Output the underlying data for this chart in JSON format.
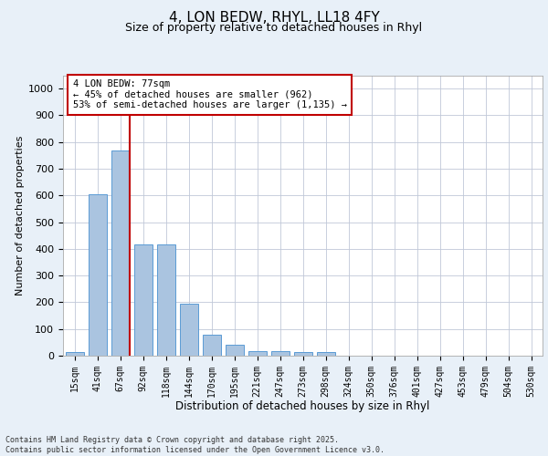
{
  "title_line1": "4, LON BEDW, RHYL, LL18 4FY",
  "title_line2": "Size of property relative to detached houses in Rhyl",
  "xlabel": "Distribution of detached houses by size in Rhyl",
  "ylabel": "Number of detached properties",
  "categories": [
    "15sqm",
    "41sqm",
    "67sqm",
    "92sqm",
    "118sqm",
    "144sqm",
    "170sqm",
    "195sqm",
    "221sqm",
    "247sqm",
    "273sqm",
    "298sqm",
    "324sqm",
    "350sqm",
    "376sqm",
    "401sqm",
    "427sqm",
    "453sqm",
    "479sqm",
    "504sqm",
    "530sqm"
  ],
  "values": [
    15,
    605,
    770,
    415,
    415,
    193,
    78,
    40,
    18,
    18,
    12,
    12,
    0,
    0,
    0,
    0,
    0,
    0,
    0,
    0,
    0
  ],
  "bar_color": "#aac4e0",
  "bar_edge_color": "#5b9bd5",
  "vline_index": 2,
  "vline_color": "#c00000",
  "annotation_text": "4 LON BEDW: 77sqm\n← 45% of detached houses are smaller (962)\n53% of semi-detached houses are larger (1,135) →",
  "annotation_box_color": "#c00000",
  "ylim": [
    0,
    1050
  ],
  "yticks": [
    0,
    100,
    200,
    300,
    400,
    500,
    600,
    700,
    800,
    900,
    1000
  ],
  "footer_text": "Contains HM Land Registry data © Crown copyright and database right 2025.\nContains public sector information licensed under the Open Government Licence v3.0.",
  "bg_color": "#e8f0f8",
  "plot_bg_color": "#ffffff",
  "grid_color": "#c0c8d8"
}
